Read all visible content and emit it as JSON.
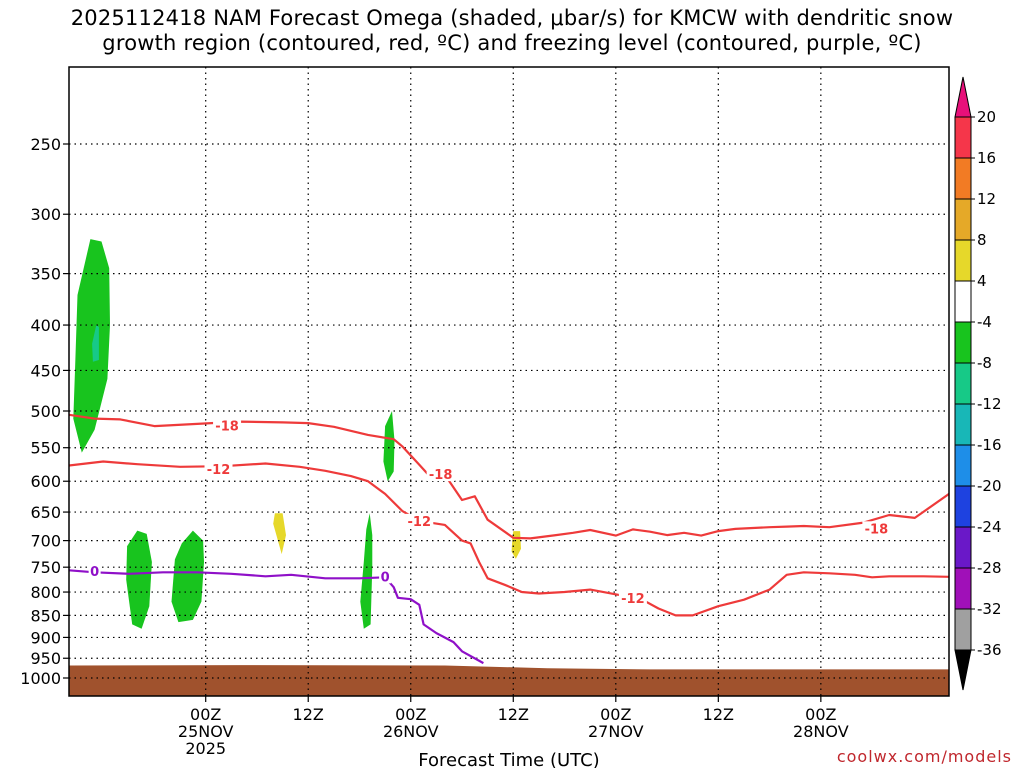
{
  "chart_data": {
    "type": "time-height",
    "title": "2025112418 NAM Forecast Omega (shaded, μbar/s) for KMCW with dendritic snow\ngrowth region (contoured, red, ºC) and freezing level (contoured, purple, ºC)",
    "xlabel": "Forecast Time (UTC)",
    "ylabel": "",
    "x_range_hours": [
      -16,
      87
    ],
    "y_range_hPa": [
      200,
      1050
    ],
    "y_scale": "log",
    "grid": "dotted",
    "x_ticks": [
      {
        "hour": 0,
        "label": "00Z",
        "sub": [
          "25NOV",
          "2025"
        ]
      },
      {
        "hour": 12,
        "label": "12Z",
        "sub": []
      },
      {
        "hour": 24,
        "label": "00Z",
        "sub": [
          "26NOV"
        ]
      },
      {
        "hour": 36,
        "label": "12Z",
        "sub": []
      },
      {
        "hour": 48,
        "label": "00Z",
        "sub": [
          "27NOV"
        ]
      },
      {
        "hour": 60,
        "label": "12Z",
        "sub": []
      },
      {
        "hour": 72,
        "label": "00Z",
        "sub": [
          "28NOV"
        ]
      }
    ],
    "y_ticks": [
      250,
      300,
      350,
      400,
      450,
      500,
      550,
      600,
      650,
      700,
      750,
      800,
      850,
      900,
      950,
      1000
    ],
    "colorbar": {
      "labels": [
        "20",
        "16",
        "12",
        "8",
        "4",
        "-4",
        "-8",
        "-12",
        "-16",
        "-20",
        "-24",
        "-28",
        "-32",
        "-36"
      ],
      "colors": [
        "#f5364a",
        "#f27b24",
        "#e5a928",
        "#e6d82a",
        "#ffffff",
        "#18c41e",
        "#17c987",
        "#18b7b7",
        "#1e8ee8",
        "#1e42e0",
        "#6a18c8",
        "#a010b8",
        "#a0a0a0"
      ],
      "top_arrow_color": "#e8107a",
      "bottom_arrow_color": "#000000"
    },
    "terrain_color": "#a0522d",
    "terrain": [
      [
        -16,
        968
      ],
      [
        4,
        967
      ],
      [
        28,
        968
      ],
      [
        40,
        975
      ],
      [
        52,
        978
      ],
      [
        70,
        978
      ],
      [
        87,
        978
      ]
    ],
    "contours": [
      {
        "name": "-18",
        "color": "#ee3a3a",
        "label_at": [
          {
            "hour": 2.5,
            "p": 519
          },
          {
            "hour": 27.5,
            "p": 589
          },
          {
            "hour": 78.5,
            "p": 678
          }
        ],
        "points": [
          [
            -16,
            505
          ],
          [
            -13,
            510
          ],
          [
            -10,
            511
          ],
          [
            -6,
            520
          ],
          [
            -1,
            517
          ],
          [
            4,
            514
          ],
          [
            9,
            515
          ],
          [
            12,
            516
          ],
          [
            15,
            521
          ],
          [
            19,
            532
          ],
          [
            22,
            538
          ],
          [
            23,
            548
          ],
          [
            25,
            575
          ],
          [
            26,
            589
          ],
          [
            28,
            590
          ],
          [
            30,
            630
          ],
          [
            31.5,
            624
          ],
          [
            33,
            663
          ],
          [
            36,
            695
          ],
          [
            38,
            696
          ],
          [
            41,
            690
          ],
          [
            43,
            686
          ],
          [
            45,
            681
          ],
          [
            48,
            691
          ],
          [
            50,
            680
          ],
          [
            52,
            684
          ],
          [
            54,
            690
          ],
          [
            56,
            686
          ],
          [
            58,
            691
          ],
          [
            60,
            683
          ],
          [
            62,
            679
          ],
          [
            66,
            676
          ],
          [
            68,
            675
          ],
          [
            70,
            674
          ],
          [
            73,
            676
          ],
          [
            77,
            668
          ],
          [
            80,
            655
          ],
          [
            83,
            660
          ],
          [
            87,
            620
          ]
        ]
      },
      {
        "name": "-12",
        "color": "#ee3a3a",
        "label_at": [
          {
            "hour": 1.5,
            "p": 581
          },
          {
            "hour": 25,
            "p": 665
          },
          {
            "hour": 50,
            "p": 812
          }
        ],
        "points": [
          [
            -16,
            576
          ],
          [
            -12,
            570
          ],
          [
            -8,
            574
          ],
          [
            -3,
            578
          ],
          [
            2,
            577
          ],
          [
            7,
            573
          ],
          [
            11,
            578
          ],
          [
            14,
            584
          ],
          [
            17,
            592
          ],
          [
            19,
            600
          ],
          [
            21,
            620
          ],
          [
            23,
            648
          ],
          [
            25,
            665
          ],
          [
            28,
            672
          ],
          [
            30,
            700
          ],
          [
            31,
            705
          ],
          [
            32,
            740
          ],
          [
            33,
            772
          ],
          [
            35,
            785
          ],
          [
            37,
            800
          ],
          [
            39,
            803
          ],
          [
            42,
            800
          ],
          [
            45,
            795
          ],
          [
            49,
            808
          ],
          [
            51,
            815
          ],
          [
            53,
            835
          ],
          [
            55,
            850
          ],
          [
            57,
            850
          ],
          [
            60,
            830
          ],
          [
            63,
            816
          ],
          [
            66,
            795
          ],
          [
            68,
            765
          ],
          [
            70,
            760
          ],
          [
            73,
            762
          ],
          [
            76,
            765
          ],
          [
            78,
            770
          ],
          [
            80,
            768
          ],
          [
            84,
            768
          ],
          [
            87,
            769
          ]
        ]
      },
      {
        "name": "0",
        "color": "#8f10c8",
        "label_at": [
          {
            "hour": -13,
            "p": 757
          },
          {
            "hour": 21,
            "p": 768
          }
        ],
        "points": [
          [
            -16,
            756
          ],
          [
            -13,
            760
          ],
          [
            -9,
            763
          ],
          [
            -5,
            760
          ],
          [
            -1,
            760
          ],
          [
            3,
            763
          ],
          [
            7,
            768
          ],
          [
            10,
            765
          ],
          [
            14,
            772
          ],
          [
            18,
            772
          ],
          [
            21,
            770
          ],
          [
            22,
            790
          ],
          [
            22.5,
            812
          ],
          [
            24,
            815
          ],
          [
            25,
            827
          ],
          [
            25.5,
            870
          ],
          [
            27,
            890
          ],
          [
            29,
            911
          ],
          [
            30,
            933
          ],
          [
            32.5,
            962
          ]
        ]
      }
    ],
    "shaded_regions": [
      {
        "name": "green-400",
        "color": "#18c41e",
        "points": [
          [
            -13.5,
            320
          ],
          [
            -12.2,
            322
          ],
          [
            -11.3,
            345
          ],
          [
            -11.2,
            400
          ],
          [
            -11.5,
            460
          ],
          [
            -13,
            525
          ],
          [
            -14.5,
            557
          ],
          [
            -15.5,
            510
          ],
          [
            -15.3,
            450
          ],
          [
            -15.0,
            370
          ]
        ]
      },
      {
        "name": "teal-400",
        "color": "#17c987",
        "points": [
          [
            -12.8,
            400
          ],
          [
            -12.5,
            402
          ],
          [
            -12.5,
            438
          ],
          [
            -13.2,
            440
          ],
          [
            -13.3,
            420
          ]
        ]
      },
      {
        "name": "green-770a",
        "color": "#18c41e",
        "points": [
          [
            -8,
            682
          ],
          [
            -6.9,
            688
          ],
          [
            -6.3,
            740
          ],
          [
            -6.6,
            830
          ],
          [
            -7.5,
            880
          ],
          [
            -8.6,
            870
          ],
          [
            -9.3,
            775
          ],
          [
            -9.2,
            710
          ]
        ]
      },
      {
        "name": "green-770b",
        "color": "#18c41e",
        "points": [
          [
            -1.5,
            682
          ],
          [
            -0.3,
            700
          ],
          [
            -0.2,
            740
          ],
          [
            -0.5,
            820
          ],
          [
            -1.5,
            860
          ],
          [
            -3.2,
            865
          ],
          [
            -4.0,
            820
          ],
          [
            -3.6,
            735
          ],
          [
            -2.8,
            705
          ]
        ]
      },
      {
        "name": "yellow-700a",
        "color": "#e6d82a",
        "points": [
          [
            8.1,
            652
          ],
          [
            9.0,
            652
          ],
          [
            9.4,
            690
          ],
          [
            8.9,
            725
          ],
          [
            7.9,
            670
          ]
        ]
      },
      {
        "name": "green-560",
        "color": "#18c41e",
        "points": [
          [
            21.8,
            500
          ],
          [
            22.1,
            540
          ],
          [
            22.0,
            585
          ],
          [
            21.3,
            600
          ],
          [
            20.8,
            570
          ],
          [
            21.0,
            520
          ]
        ]
      },
      {
        "name": "green-750",
        "color": "#18c41e",
        "points": [
          [
            19.2,
            652
          ],
          [
            19.5,
            690
          ],
          [
            19.5,
            750
          ],
          [
            19.3,
            870
          ],
          [
            18.5,
            880
          ],
          [
            18.1,
            820
          ],
          [
            18.5,
            740
          ],
          [
            18.8,
            680
          ]
        ]
      },
      {
        "name": "yellow-700b",
        "color": "#e6d82a",
        "points": [
          [
            36.0,
            683
          ],
          [
            36.8,
            683
          ],
          [
            36.9,
            715
          ],
          [
            36.3,
            734
          ],
          [
            35.8,
            720
          ],
          [
            35.9,
            695
          ]
        ]
      }
    ]
  },
  "watermark": "coolwx.com/models"
}
